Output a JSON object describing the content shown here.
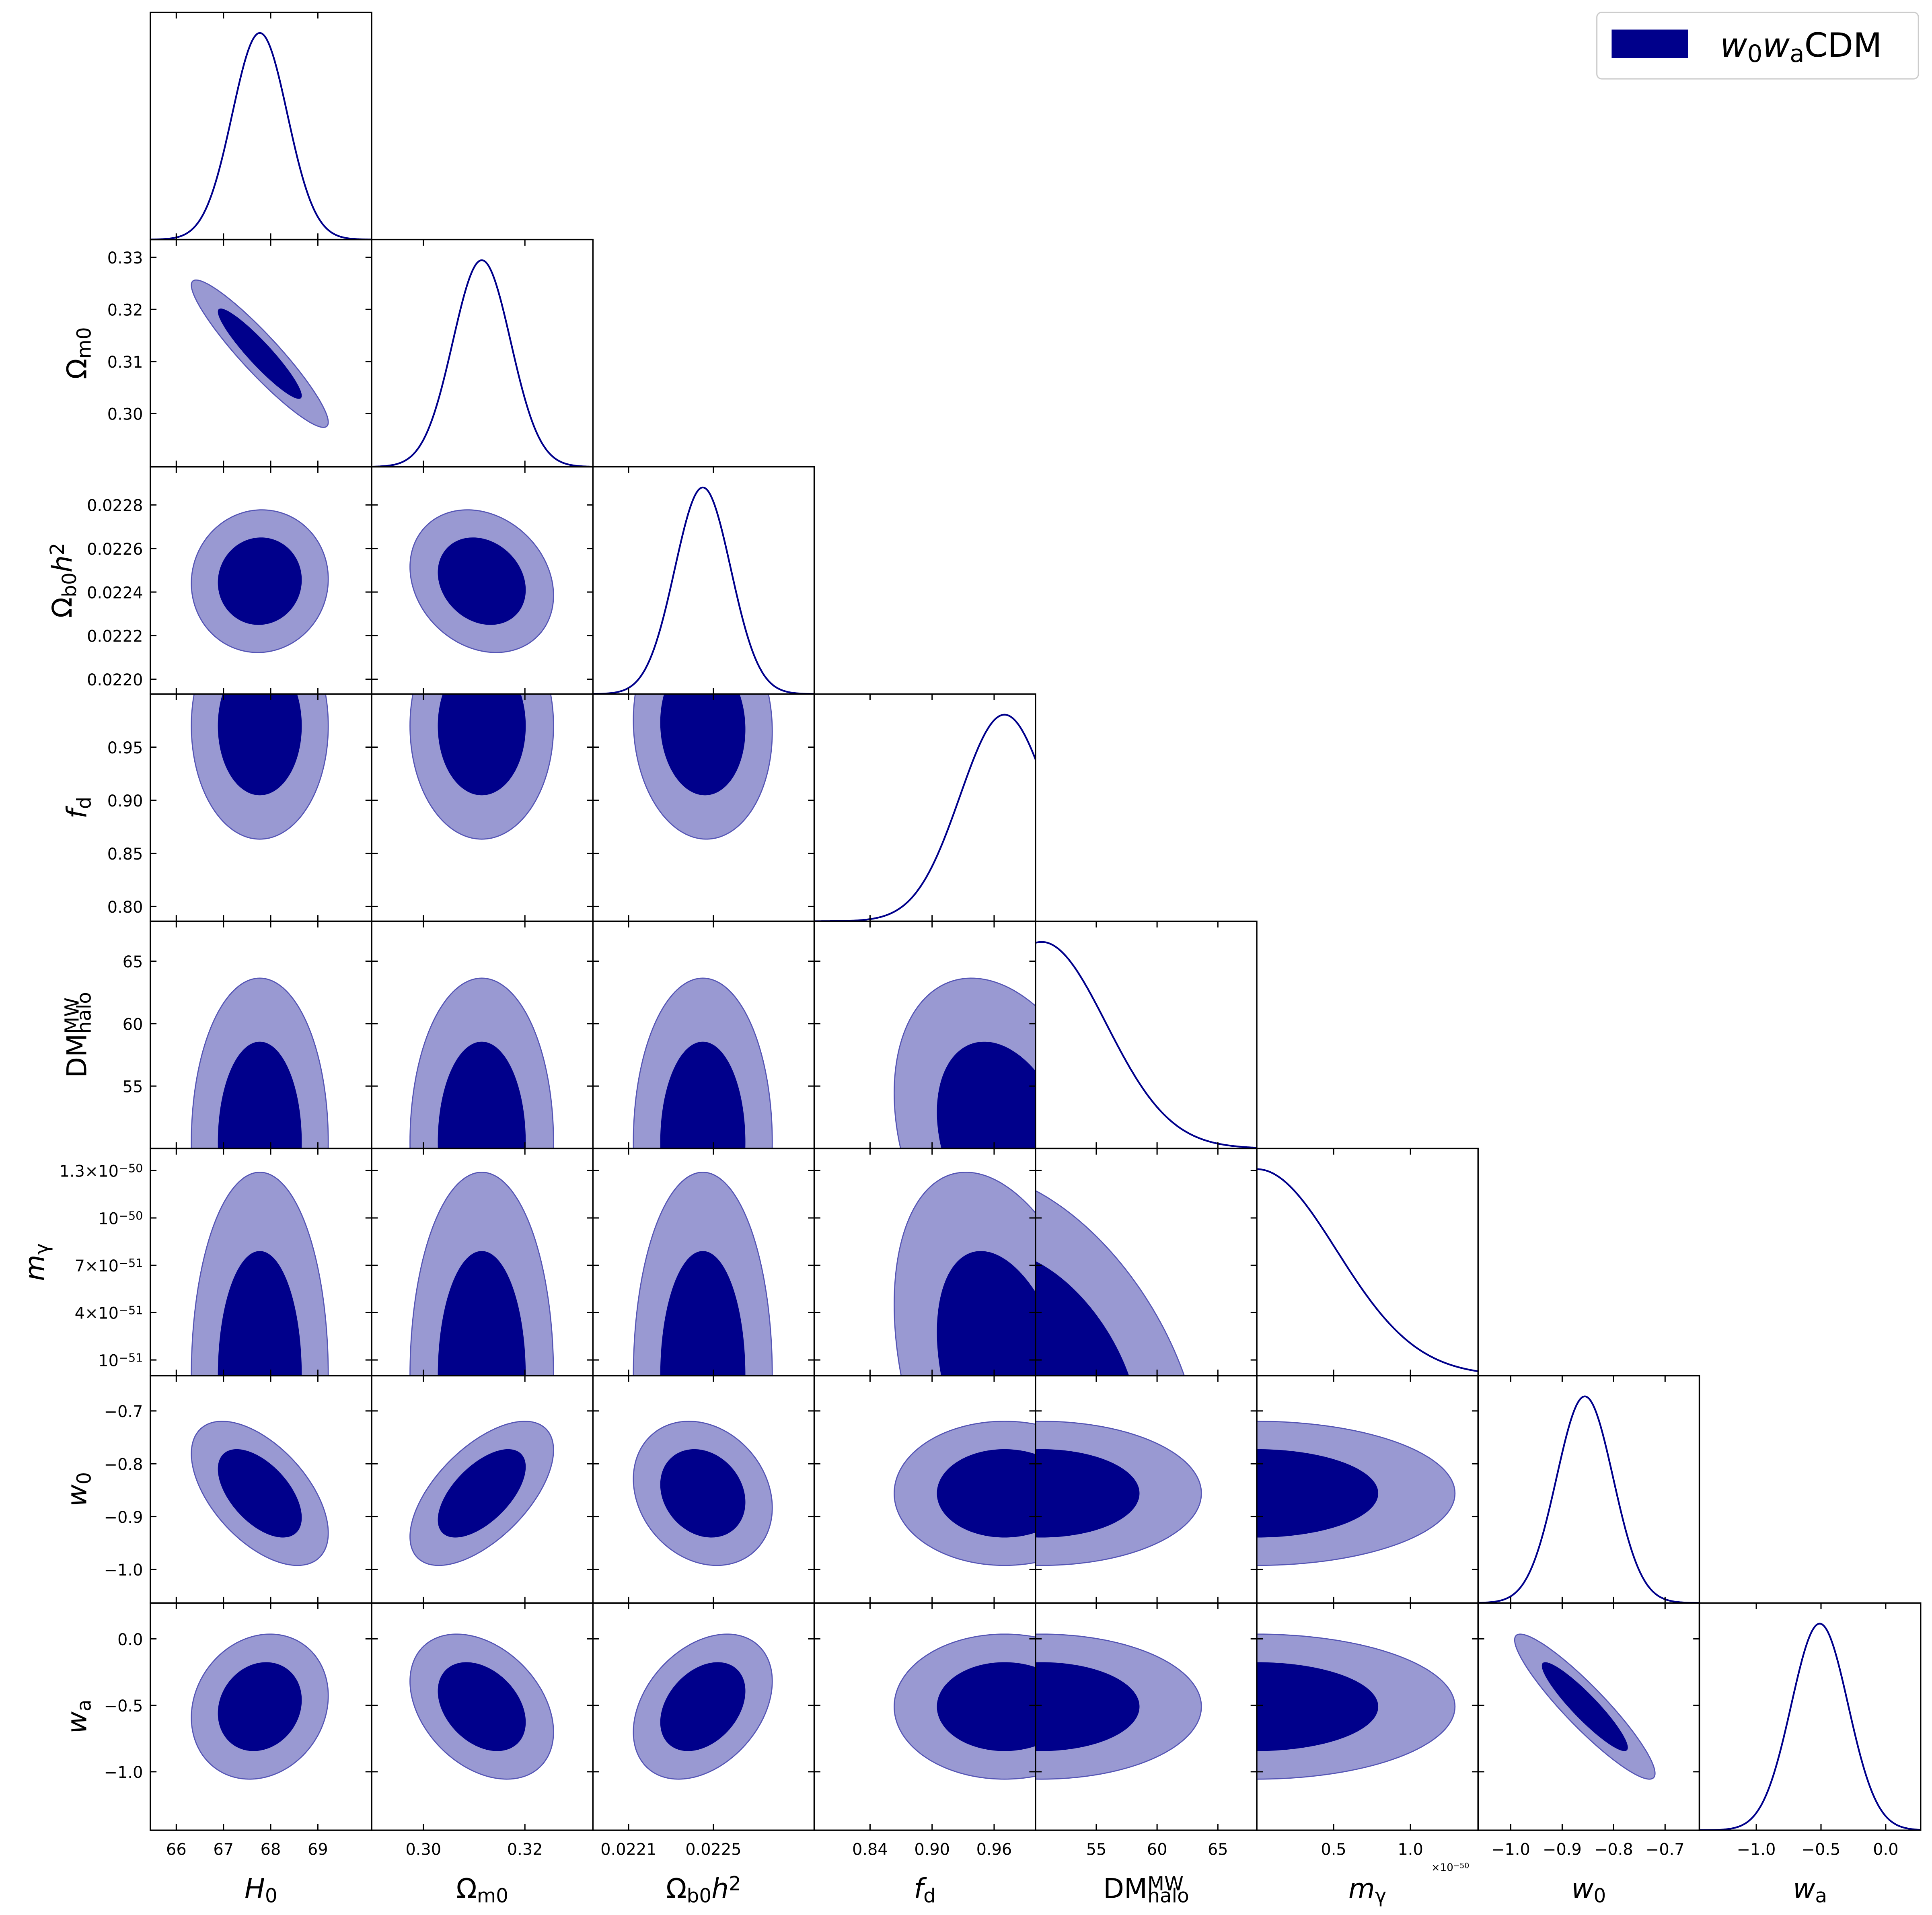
{
  "chart_data": {
    "type": "triangle",
    "colors": {
      "inner": "#00008b",
      "outer": "#9999d2",
      "outer_edge": "#5555b5",
      "line": "#00008b"
    },
    "legend": {
      "placement": "top-right",
      "entries": [
        {
          "label": [
            {
              "text": "w",
              "style": "it"
            },
            {
              "text": "0",
              "style": "sub"
            },
            {
              "text": "w",
              "style": "it"
            },
            {
              "text": "a",
              "style": "sub"
            },
            {
              "text": "CDM"
            }
          ],
          "color": "#00008b"
        }
      ]
    },
    "parameters": [
      {
        "key": "H0",
        "label": [
          {
            "text": "H",
            "style": "it"
          },
          {
            "text": "0",
            "style": "sub"
          }
        ],
        "range": [
          65.45,
          70.14
        ],
        "mean": 67.77,
        "sigma": 0.585,
        "xticks": [
          66,
          67,
          68,
          69
        ],
        "xtick_labels": [
          "66",
          "67",
          "68",
          "69"
        ],
        "yticks": [],
        "ytick_labels": []
      },
      {
        "key": "Om0",
        "label": [
          {
            "text": "Ω"
          },
          {
            "text": "m0",
            "style": "sub"
          }
        ],
        "range": [
          0.2898,
          0.3334
        ],
        "mean": 0.3115,
        "sigma": 0.0057,
        "xticks": [
          0.3,
          0.32
        ],
        "xtick_labels": [
          "0.30",
          "0.32"
        ],
        "yticks": [
          0.3,
          0.31,
          0.32,
          0.33
        ],
        "ytick_labels": [
          "0.30",
          "0.31",
          "0.32",
          "0.33"
        ]
      },
      {
        "key": "Ob0h2",
        "label": [
          {
            "text": "Ω"
          },
          {
            "text": "b0",
            "style": "sub"
          },
          {
            "text": "h",
            "style": "it"
          },
          {
            "text": "2",
            "style": "sup"
          }
        ],
        "range": [
          0.021932,
          0.022975
        ],
        "mean": 0.02245,
        "sigma": 0.000132,
        "xticks": [
          0.0221,
          0.0225
        ],
        "xtick_labels": [
          "0.0221",
          "0.0225"
        ],
        "yticks": [
          0.022,
          0.0222,
          0.0224,
          0.0226,
          0.0228
        ],
        "ytick_labels": [
          "0.0220",
          "0.0222",
          "0.0224",
          "0.0226",
          "0.0228"
        ]
      },
      {
        "key": "fd",
        "label": [
          {
            "text": "f",
            "style": "it"
          },
          {
            "text": "d",
            "style": "sub"
          }
        ],
        "range": [
          0.786,
          1.0
        ],
        "mean": 0.97,
        "sigma": 0.043,
        "xticks": [
          0.84,
          0.9,
          0.96
        ],
        "xtick_labels": [
          "0.84",
          "0.90",
          "0.96"
        ],
        "yticks": [
          0.8,
          0.85,
          0.9,
          0.95
        ],
        "ytick_labels": [
          "0.80",
          "0.85",
          "0.90",
          "0.95"
        ]
      },
      {
        "key": "DM_halo_MW",
        "label": [
          {
            "text": "DM"
          },
          {
            "text": "MW",
            "style": "sup"
          },
          {
            "text": "halo",
            "style": "sub",
            "stack": true
          }
        ],
        "range": [
          50.0,
          68.2
        ],
        "mean": 50.5,
        "sigma": 5.3,
        "xticks": [
          55,
          60,
          65
        ],
        "xtick_labels": [
          "55",
          "60",
          "65"
        ],
        "yticks": [
          55,
          60,
          65
        ],
        "ytick_labels": [
          "55",
          "60",
          "65"
        ]
      },
      {
        "key": "m_gamma",
        "label": [
          {
            "text": "m",
            "style": "it"
          },
          {
            "text": "γ",
            "style": "sub"
          }
        ],
        "unit_multiplier": [
          {
            "text": "×10"
          },
          {
            "text": "−50",
            "style": "sup"
          }
        ],
        "range": [
          0,
          1.44
        ],
        "mean": 0,
        "sigma": 0.52,
        "xticks": [
          0.5,
          1.0
        ],
        "xtick_labels": [
          "0.5",
          "1.0"
        ],
        "yticks": [
          0.1,
          0.4,
          0.7,
          1.0,
          1.3
        ],
        "ytick_labels": [
          [
            {
              "text": "10"
            },
            {
              "text": "−51",
              "style": "sup"
            }
          ],
          [
            {
              "text": "4×10"
            },
            {
              "text": "−51",
              "style": "sup"
            }
          ],
          [
            {
              "text": "7×10"
            },
            {
              "text": "−51",
              "style": "sup"
            }
          ],
          [
            {
              "text": "10"
            },
            {
              "text": "−50",
              "style": "sup"
            }
          ],
          [
            {
              "text": "1.3×10"
            },
            {
              "text": "−50",
              "style": "sup"
            }
          ]
        ]
      },
      {
        "key": "w0",
        "label": [
          {
            "text": "w",
            "style": "it"
          },
          {
            "text": "0",
            "style": "sub"
          }
        ],
        "range": [
          -1.0635,
          -0.6334
        ],
        "mean": -0.856,
        "sigma": 0.055,
        "xticks": [
          -1.0,
          -0.9,
          -0.8,
          -0.7
        ],
        "xtick_labels": [
          "−1.0",
          "−0.9",
          "−0.8",
          "−0.7"
        ],
        "yticks": [
          -1.0,
          -0.9,
          -0.8,
          -0.7
        ],
        "ytick_labels": [
          "−1.0",
          "−0.9",
          "−0.8",
          "−0.7"
        ]
      },
      {
        "key": "wa",
        "label": [
          {
            "text": "w",
            "style": "it"
          },
          {
            "text": "a",
            "style": "sub"
          }
        ],
        "range": [
          -1.44,
          0.27
        ],
        "mean": -0.51,
        "sigma": 0.22,
        "xticks": [
          -1.0,
          -0.5,
          0.0
        ],
        "xtick_labels": [
          "−1.0",
          "−0.5",
          "0.0"
        ],
        "yticks": [
          -1.0,
          -0.5,
          0.0
        ],
        "ytick_labels": [
          "−1.0",
          "−0.5",
          "0.0"
        ]
      }
    ],
    "correlations": [
      [
        1.0,
        -0.93,
        0.03,
        0.0,
        0.0,
        0.0,
        -0.55,
        0.15
      ],
      [
        -0.93,
        1.0,
        -0.2,
        0.0,
        0.0,
        0.0,
        0.6,
        -0.35
      ],
      [
        0.03,
        -0.2,
        1.0,
        -0.05,
        0.0,
        0.0,
        -0.2,
        0.35
      ],
      [
        0.0,
        0.0,
        -0.05,
        1.0,
        -0.3,
        -0.35,
        0.0,
        0.0
      ],
      [
        0.0,
        0.0,
        0.0,
        -0.3,
        1.0,
        -0.45,
        0.0,
        0.0
      ],
      [
        0.0,
        0.0,
        0.0,
        -0.35,
        -0.45,
        1.0,
        0.0,
        0.0
      ],
      [
        -0.55,
        0.6,
        -0.2,
        0.0,
        0.0,
        0.0,
        1.0,
        -0.92
      ],
      [
        0.15,
        -0.35,
        0.35,
        0.0,
        0.0,
        0.0,
        -0.92,
        1.0
      ]
    ]
  }
}
